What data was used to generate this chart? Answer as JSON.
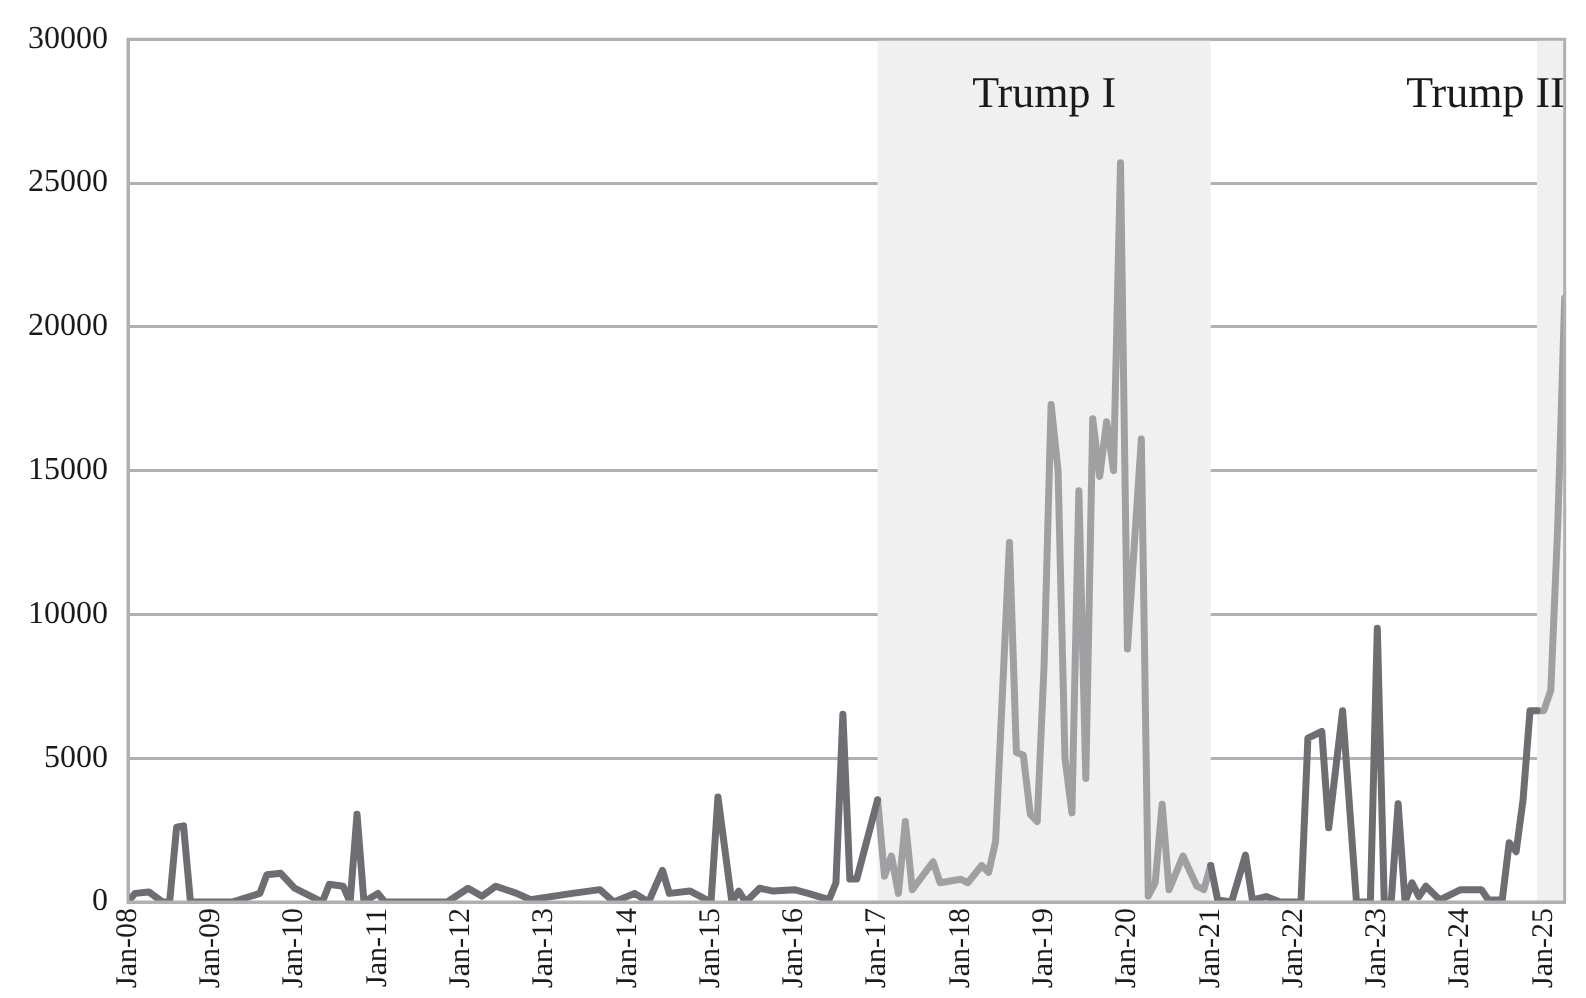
{
  "chart_data": {
    "type": "line",
    "xlim": [
      "2008-01",
      "2025-04"
    ],
    "ylim": [
      0,
      30000
    ],
    "grid": "y",
    "marker": "none",
    "line_style": "solid",
    "xticks": [
      {
        "value": "2008-01",
        "label": "Jan-08"
      },
      {
        "value": "2009-01",
        "label": "Jan-09"
      },
      {
        "value": "2010-01",
        "label": "Jan-10"
      },
      {
        "value": "2011-01",
        "label": "Jan-11"
      },
      {
        "value": "2012-01",
        "label": "Jan-12"
      },
      {
        "value": "2013-01",
        "label": "Jan-13"
      },
      {
        "value": "2014-01",
        "label": "Jan-14"
      },
      {
        "value": "2015-01",
        "label": "Jan-15"
      },
      {
        "value": "2016-01",
        "label": "Jan-16"
      },
      {
        "value": "2017-01",
        "label": "Jan-17"
      },
      {
        "value": "2018-01",
        "label": "Jan-18"
      },
      {
        "value": "2019-01",
        "label": "Jan-19"
      },
      {
        "value": "2020-01",
        "label": "Jan-20"
      },
      {
        "value": "2021-01",
        "label": "Jan-21"
      },
      {
        "value": "2022-01",
        "label": "Jan-22"
      },
      {
        "value": "2023-01",
        "label": "Jan-23"
      },
      {
        "value": "2024-01",
        "label": "Jan-24"
      },
      {
        "value": "2025-01",
        "label": "Jan-25"
      }
    ],
    "yticks": [
      0,
      5000,
      10000,
      15000,
      20000,
      25000,
      30000
    ],
    "bands": [
      {
        "axis": "x",
        "from": "2017-01",
        "to": "2021-01",
        "label": "Trump I",
        "color": "#f0f0f0"
      },
      {
        "axis": "x",
        "from": "2024-12",
        "to": "2025-04",
        "label": "Trump II",
        "color": "#f0f0f0"
      }
    ],
    "series": [
      {
        "color": "#6d6e71",
        "x": [
          "2008-01",
          "2008-02",
          "2008-04",
          "2008-06",
          "2008-07",
          "2008-08",
          "2008-09",
          "2008-10",
          "2009-04",
          "2009-08",
          "2009-09",
          "2009-11",
          "2010-01",
          "2010-05",
          "2010-06",
          "2010-08",
          "2010-09",
          "2010-10",
          "2010-11",
          "2011-01",
          "2011-02",
          "2011-11",
          "2012-02",
          "2012-04",
          "2012-06",
          "2012-09",
          "2012-11",
          "2013-05",
          "2013-09",
          "2013-11",
          "2014-02",
          "2014-04",
          "2014-06",
          "2014-07",
          "2014-10",
          "2015-01",
          "2015-02",
          "2015-04",
          "2015-05",
          "2015-06",
          "2015-08",
          "2015-10",
          "2016-01",
          "2016-03",
          "2016-06",
          "2016-07",
          "2016-08",
          "2016-09",
          "2016-10",
          "2017-01",
          "2017-02",
          "2021-01",
          "2021-02",
          "2021-04",
          "2021-06",
          "2021-07",
          "2021-09",
          "2021-11",
          "2022-02",
          "2022-03",
          "2022-05",
          "2022-06",
          "2022-08",
          "2022-10",
          "2022-12",
          "2023-01",
          "2023-02",
          "2023-03",
          "2023-04",
          "2023-05",
          "2023-06",
          "2023-07",
          "2023-08",
          "2023-10",
          "2024-01",
          "2024-04",
          "2024-05",
          "2024-07",
          "2024-08",
          "2024-09",
          "2024-10",
          "2024-11",
          "2024-12"
        ],
        "values": [
          0,
          300,
          350,
          0,
          0,
          2600,
          2650,
          0,
          0,
          300,
          950,
          1000,
          480,
          0,
          620,
          550,
          0,
          3050,
          0,
          300,
          0,
          0,
          480,
          200,
          550,
          300,
          80,
          300,
          430,
          0,
          300,
          0,
          1100,
          300,
          380,
          0,
          3650,
          0,
          380,
          0,
          480,
          380,
          430,
          300,
          80,
          670,
          6530,
          800,
          800,
          3550,
          null,
          1270,
          70,
          0,
          1630,
          70,
          190,
          0,
          0,
          5700,
          5930,
          2580,
          6650,
          0,
          0,
          9520,
          0,
          0,
          3420,
          0,
          670,
          190,
          550,
          70,
          430,
          430,
          70,
          70,
          2060,
          1750,
          3550,
          6650,
          6650
        ]
      },
      {
        "color": "#a0a0a2",
        "x": [
          "2017-01",
          "2017-02",
          "2017-03",
          "2017-04",
          "2017-05",
          "2017-06",
          "2017-09",
          "2017-10",
          "2018-01",
          "2018-02",
          "2018-04",
          "2018-05",
          "2018-06",
          "2018-08",
          "2018-09",
          "2018-10",
          "2018-11",
          "2018-12",
          "2019-01",
          "2019-02",
          "2019-03",
          "2019-04",
          "2019-05",
          "2019-06",
          "2019-07",
          "2019-08",
          "2019-09",
          "2019-10",
          "2019-11",
          "2019-12",
          "2020-01",
          "2020-03",
          "2020-04",
          "2020-05",
          "2020-06",
          "2020-07",
          "2020-09",
          "2020-11",
          "2020-12",
          "2021-01",
          "2021-02",
          "2024-12",
          "2025-01",
          "2025-02",
          "2025-03",
          "2025-04"
        ],
        "values": [
          3550,
          900,
          1600,
          300,
          2800,
          430,
          1400,
          670,
          790,
          670,
          1270,
          1030,
          2100,
          12500,
          5200,
          5100,
          3050,
          2800,
          8300,
          17300,
          15000,
          5000,
          3100,
          14300,
          4300,
          16800,
          14800,
          16700,
          15000,
          25700,
          8800,
          16100,
          200,
          670,
          3400,
          430,
          1600,
          550,
          430,
          1270,
          null,
          6650,
          6650,
          7370,
          13100,
          21000
        ]
      }
    ]
  }
}
